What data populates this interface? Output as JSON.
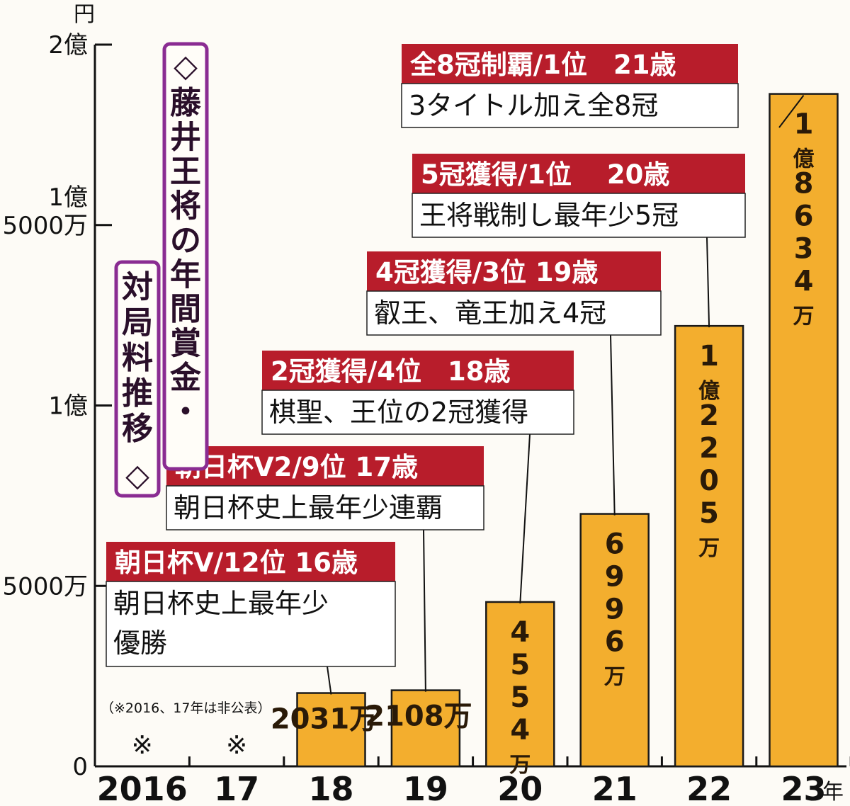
{
  "title": {
    "main": "藤井王将の年間賞金・",
    "sub": "対局料推移",
    "top_diamond": "◇",
    "bottom_diamond": "◇"
  },
  "note": "（※2016、17年は非公表）",
  "colors": {
    "bar": "#f3ae2e",
    "bar_stroke": "#1a1a1a",
    "header": "#b81d2b",
    "title_border": "#8a2c92"
  },
  "chart_data": {
    "type": "bar",
    "categories": [
      "2016",
      "17",
      "18",
      "19",
      "20",
      "21",
      "22",
      "23"
    ],
    "values": [
      null,
      null,
      2031,
      2108,
      4554,
      6996,
      12205,
      18634
    ],
    "value_labels": [
      "※",
      "※",
      "2031万",
      "2108万",
      "4554万",
      "6996万",
      "1億2205万",
      "1億8634万"
    ],
    "ylim": [
      0,
      20000
    ],
    "yunit": "万円",
    "y_unit_label": "円",
    "x_unit_label": "年",
    "y_ticks": [
      {
        "value": 0,
        "label": "0"
      },
      {
        "value": 5000,
        "label": "5000万"
      },
      {
        "value": 10000,
        "label": "1億"
      },
      {
        "value": 15000,
        "label": "1億\n5000万"
      },
      {
        "value": 20000,
        "label": "2億"
      }
    ],
    "annotations": [
      {
        "category": "18",
        "header": "朝日杯V/12位 16歳",
        "text": "朝日杯史上最年少\n優勝"
      },
      {
        "category": "19",
        "header": "朝日杯V2/9位 17歳",
        "text": "朝日杯史上最年少連覇"
      },
      {
        "category": "20",
        "header": "2冠獲得/4位　18歳",
        "text": "棋聖、王位の2冠獲得"
      },
      {
        "category": "21",
        "header": "4冠獲得/3位 19歳",
        "text": "叡王、竜王加え4冠"
      },
      {
        "category": "22",
        "header": "5冠獲得/1位　 20歳",
        "text": "王将戦制し最年少5冠"
      },
      {
        "category": "23",
        "header": "全8冠制覇/1位　21歳",
        "text": "3タイトル加え全8冠"
      }
    ]
  }
}
